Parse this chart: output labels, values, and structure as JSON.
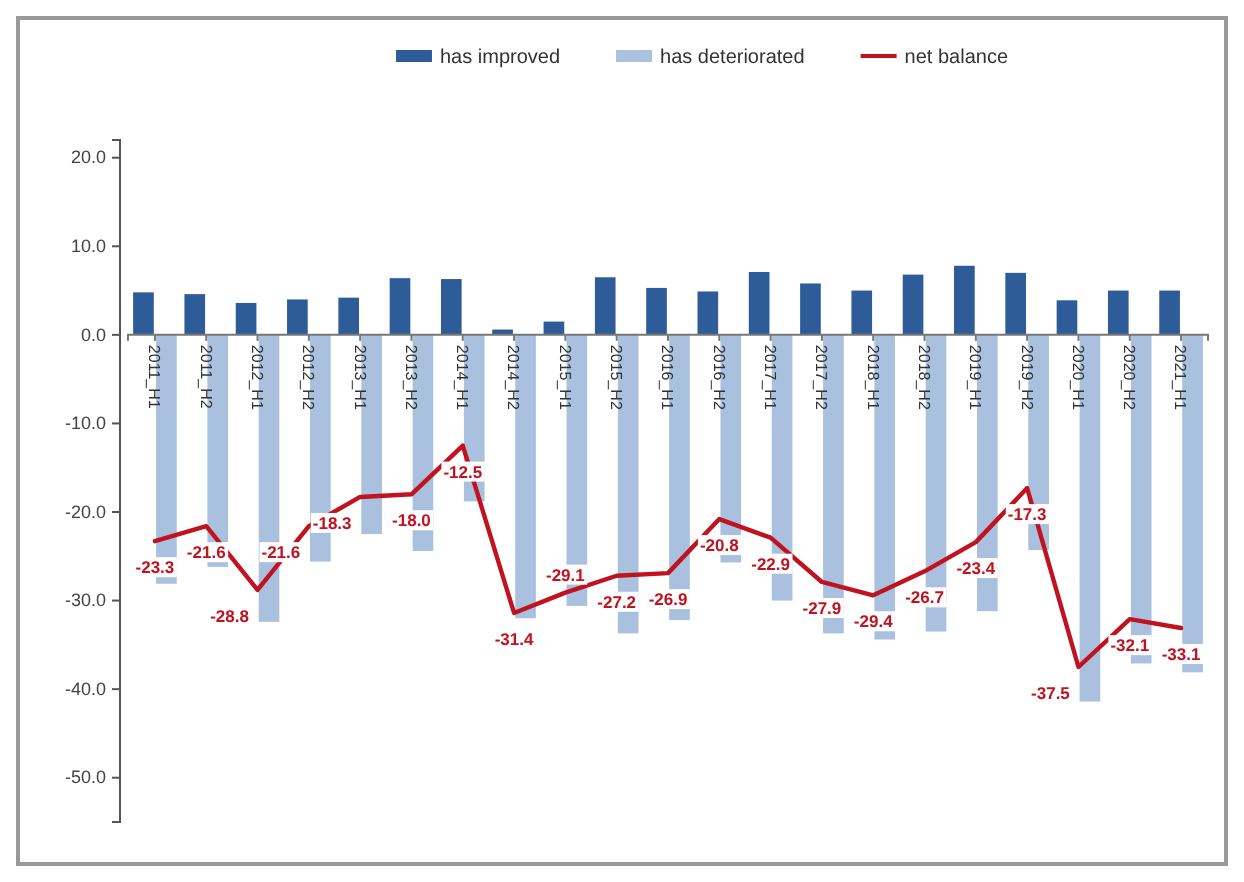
{
  "chart_data": {
    "type": "bar",
    "categories": [
      "2011_H1",
      "2011_H2",
      "2012_H1",
      "2012_H2",
      "2013_H1",
      "2013_H2",
      "2014_H1",
      "2014_H2",
      "2015_H1",
      "2015_H2",
      "2016_H1",
      "2016_H2",
      "2017_H1",
      "2017_H2",
      "2018_H1",
      "2018_H2",
      "2019_H1",
      "2019_H2",
      "2020_H1",
      "2020_H2",
      "2021_H1"
    ],
    "series": [
      {
        "name": "has improved",
        "color": "#2e5c99",
        "values": [
          4.8,
          4.6,
          3.6,
          4.0,
          4.2,
          6.4,
          6.3,
          0.6,
          1.5,
          6.5,
          5.3,
          4.9,
          7.1,
          5.8,
          5.0,
          6.8,
          7.8,
          7.0,
          3.9,
          5.0,
          5.0
        ]
      },
      {
        "name": "has deteriorated",
        "color": "#a9c1de",
        "values": [
          -28.1,
          -26.2,
          -32.4,
          -25.6,
          -22.5,
          -24.4,
          -18.8,
          -32.0,
          -30.6,
          -33.7,
          -32.2,
          -25.7,
          -30.0,
          -33.7,
          -34.4,
          -33.5,
          -31.2,
          -24.3,
          -41.4,
          -37.1,
          -38.1
        ]
      },
      {
        "name": "net balance",
        "type": "line",
        "color": "#c0121f",
        "values": [
          -23.3,
          -21.6,
          -28.8,
          -21.6,
          -18.3,
          -18.0,
          -12.5,
          -31.4,
          -29.1,
          -27.2,
          -26.9,
          -20.8,
          -22.9,
          -27.9,
          -29.4,
          -26.7,
          -23.4,
          -17.3,
          -37.5,
          -32.1,
          -33.1
        ],
        "value_labels": [
          "-23.3",
          "-21.6",
          "-28.8",
          "-21.6",
          "-18.3",
          "-18.0",
          "-12.5",
          "-31.4",
          "-29.1",
          "-27.2",
          "-26.9",
          "-20.8",
          "-22.9",
          "-27.9",
          "-29.4",
          "-26.7",
          "-23.4",
          "-17.3",
          "-37.5",
          "-32.1",
          "-33.1"
        ]
      }
    ],
    "ylim": [
      -55,
      22
    ],
    "yticks": [
      {
        "value": 20,
        "label": "20.0"
      },
      {
        "value": 10,
        "label": "10.0"
      },
      {
        "value": 0,
        "label": "0.0"
      },
      {
        "value": -10,
        "label": "-10.0"
      },
      {
        "value": -20,
        "label": "-20.0"
      },
      {
        "value": -30,
        "label": "-30.0"
      },
      {
        "value": -40,
        "label": "-40.0"
      },
      {
        "value": -50,
        "label": "-50.0"
      }
    ],
    "legend": "top",
    "grid": false,
    "marker": "none",
    "line_style": "solid"
  }
}
